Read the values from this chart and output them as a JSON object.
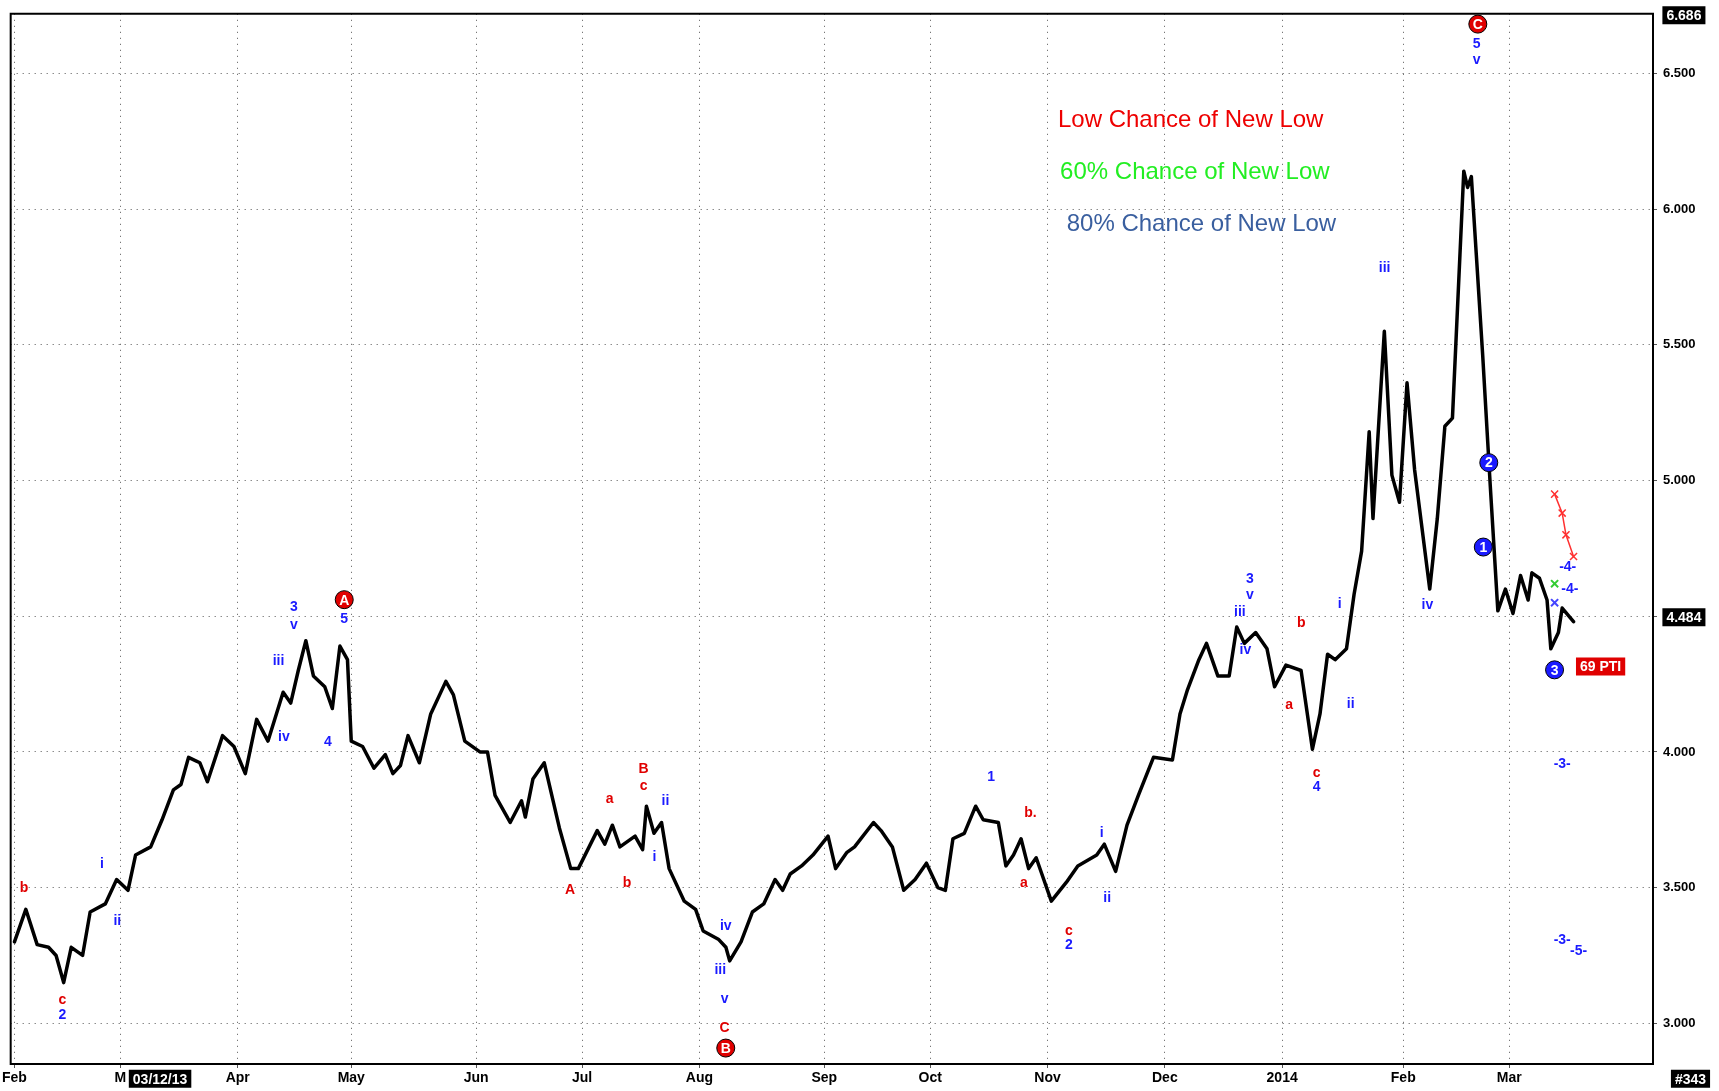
{
  "chart_data": {
    "type": "line",
    "xlim": [
      "2013-01-31",
      "2014-04-10"
    ],
    "ylim": [
      2.85,
      6.72
    ],
    "xticks": [
      {
        "value": "2013-02-01",
        "label": "Feb"
      },
      {
        "value": "2013-03-01",
        "label": "M"
      },
      {
        "value": "2013-04-01",
        "label": "Apr"
      },
      {
        "value": "2013-05-01",
        "label": "May"
      },
      {
        "value": "2013-06-03",
        "label": "Jun"
      },
      {
        "value": "2013-07-01",
        "label": "Jul"
      },
      {
        "value": "2013-08-01",
        "label": "Aug"
      },
      {
        "value": "2013-09-03",
        "label": "Sep"
      },
      {
        "value": "2013-10-01",
        "label": "Oct"
      },
      {
        "value": "2013-11-01",
        "label": "Nov"
      },
      {
        "value": "2013-12-02",
        "label": "Dec"
      },
      {
        "value": "2014-01-02",
        "label": "2014"
      },
      {
        "value": "2014-02-03",
        "label": "Feb"
      },
      {
        "value": "2014-03-03",
        "label": "Mar"
      }
    ],
    "yticks": [
      {
        "value": 3,
        "label": "3.000"
      },
      {
        "value": 3.5,
        "label": "3.500"
      },
      {
        "value": 4,
        "label": "4.000"
      },
      {
        "value": 4.5,
        "label": null
      },
      {
        "value": 5,
        "label": "5.000"
      },
      {
        "value": 5.5,
        "label": "5.500"
      },
      {
        "value": 6,
        "label": "6.000"
      },
      {
        "value": 6.5,
        "label": "6.500"
      }
    ],
    "grid": true,
    "legend": false,
    "series": [
      {
        "color": "#000000",
        "marker": "none",
        "x": [
          "2013-02-01",
          "2013-02-04",
          "2013-02-07",
          "2013-02-10",
          "2013-02-12",
          "2013-02-14",
          "2013-02-16",
          "2013-02-19",
          "2013-02-21",
          "2013-02-25",
          "2013-02-28",
          "2013-03-03",
          "2013-03-05",
          "2013-03-09",
          "2013-03-12",
          "2013-03-15",
          "2013-03-17",
          "2013-03-19",
          "2013-03-22",
          "2013-03-24",
          "2013-03-28",
          "2013-03-31",
          "2013-04-03",
          "2013-04-06",
          "2013-04-09",
          "2013-04-13",
          "2013-04-15",
          "2013-04-17",
          "2013-04-19",
          "2013-04-21",
          "2013-04-24",
          "2013-04-26",
          "2013-04-28",
          "2013-04-30",
          "2013-05-01",
          "2013-05-04",
          "2013-05-07",
          "2013-05-10",
          "2013-05-12",
          "2013-05-14",
          "2013-05-16",
          "2013-05-19",
          "2013-05-22",
          "2013-05-26",
          "2013-05-28",
          "2013-05-31",
          "2013-06-04",
          "2013-06-06",
          "2013-06-08",
          "2013-06-12",
          "2013-06-15",
          "2013-06-16",
          "2013-06-18",
          "2013-06-21",
          "2013-06-23",
          "2013-06-25",
          "2013-06-28",
          "2013-06-30",
          "2013-07-05",
          "2013-07-07",
          "2013-07-09",
          "2013-07-11",
          "2013-07-15",
          "2013-07-17",
          "2013-07-18",
          "2013-07-20",
          "2013-07-22",
          "2013-07-24",
          "2013-07-28",
          "2013-07-31",
          "2013-08-02",
          "2013-08-06",
          "2013-08-08",
          "2013-08-09",
          "2013-08-12",
          "2013-08-15",
          "2013-08-18",
          "2013-08-21",
          "2013-08-23",
          "2013-08-25",
          "2013-08-28",
          "2013-08-31",
          "2013-09-04",
          "2013-09-06",
          "2013-09-09",
          "2013-09-11",
          "2013-09-16",
          "2013-09-18",
          "2013-09-21",
          "2013-09-24",
          "2013-09-27",
          "2013-09-30",
          "2013-10-03",
          "2013-10-05",
          "2013-10-07",
          "2013-10-10",
          "2013-10-13",
          "2013-10-15",
          "2013-10-19",
          "2013-10-21",
          "2013-10-23",
          "2013-10-25",
          "2013-10-27",
          "2013-10-29",
          "2013-10-31",
          "2013-11-02",
          "2013-11-06",
          "2013-11-09",
          "2013-11-14",
          "2013-11-16",
          "2013-11-19",
          "2013-11-22",
          "2013-11-25",
          "2013-11-29",
          "2013-12-04",
          "2013-12-06",
          "2013-12-08",
          "2013-12-11",
          "2013-12-13",
          "2013-12-16",
          "2013-12-19",
          "2013-12-21",
          "2013-12-23",
          "2013-12-26",
          "2013-12-29",
          "2013-12-31",
          "2014-01-03",
          "2014-01-07",
          "2014-01-10",
          "2014-01-12",
          "2014-01-14",
          "2014-01-16",
          "2014-01-19",
          "2014-01-21",
          "2014-01-23",
          "2014-01-25",
          "2014-01-26",
          "2014-01-29",
          "2014-01-31",
          "2014-02-02",
          "2014-02-04",
          "2014-02-06",
          "2014-02-10",
          "2014-02-12",
          "2014-02-14",
          "2014-02-16",
          "2014-02-19",
          "2014-02-20",
          "2014-02-21",
          "2014-02-24",
          "2014-02-26",
          "2014-02-28",
          "2014-03-02",
          "2014-03-04",
          "2014-03-06",
          "2014-03-08",
          "2014-03-09",
          "2014-03-11",
          "2014-03-13",
          "2014-03-14",
          "2014-03-16",
          "2014-03-17",
          "2014-03-20"
        ],
        "values": [
          3.3,
          3.42,
          3.29,
          3.28,
          3.25,
          3.15,
          3.28,
          3.25,
          3.41,
          3.44,
          3.53,
          3.49,
          3.62,
          3.65,
          3.75,
          3.86,
          3.88,
          3.98,
          3.96,
          3.89,
          4.06,
          4.02,
          3.92,
          4.12,
          4.04,
          4.22,
          4.18,
          4.3,
          4.41,
          4.28,
          4.24,
          4.16,
          4.39,
          4.34,
          4.04,
          4.02,
          3.94,
          3.99,
          3.92,
          3.95,
          4.06,
          3.96,
          4.14,
          4.26,
          4.21,
          4.04,
          4.0,
          4.0,
          3.84,
          3.74,
          3.82,
          3.76,
          3.9,
          3.96,
          3.84,
          3.72,
          3.57,
          3.57,
          3.71,
          3.66,
          3.73,
          3.65,
          3.69,
          3.64,
          3.8,
          3.7,
          3.74,
          3.57,
          3.45,
          3.42,
          3.34,
          3.31,
          3.28,
          3.23,
          3.3,
          3.41,
          3.44,
          3.53,
          3.49,
          3.55,
          3.58,
          3.62,
          3.69,
          3.57,
          3.63,
          3.65,
          3.74,
          3.71,
          3.65,
          3.49,
          3.53,
          3.59,
          3.5,
          3.49,
          3.68,
          3.7,
          3.8,
          3.75,
          3.74,
          3.58,
          3.62,
          3.68,
          3.57,
          3.61,
          3.53,
          3.45,
          3.52,
          3.58,
          3.62,
          3.66,
          3.56,
          3.73,
          3.84,
          3.98,
          3.97,
          4.14,
          4.23,
          4.34,
          4.4,
          4.28,
          4.28,
          4.46,
          4.4,
          4.44,
          4.38,
          4.24,
          4.32,
          4.3,
          4.01,
          4.14,
          4.36,
          4.34,
          4.38,
          4.58,
          4.74,
          5.18,
          4.86,
          5.55,
          5.02,
          4.92,
          5.36,
          5.04,
          4.6,
          4.86,
          5.2,
          5.23,
          6.14,
          6.08,
          6.12,
          5.46,
          4.98,
          4.52,
          4.6,
          4.51,
          4.65,
          4.56,
          4.66,
          4.64,
          4.56,
          4.38,
          4.44,
          4.53,
          4.48
        ]
      },
      {
        "color": "#ff3030",
        "marker": "cross",
        "x": [
          "2014-03-15",
          "2014-03-17",
          "2014-03-18",
          "2014-03-20"
        ],
        "values": [
          4.95,
          4.88,
          4.8,
          4.72
        ]
      },
      {
        "type": "scatter",
        "color": "#33cc33",
        "marker": "cross",
        "x": [
          "2014-03-15"
        ],
        "values": [
          4.62
        ]
      },
      {
        "type": "scatter",
        "color": "#4444ff",
        "marker": "cross",
        "x": [
          "2014-03-15"
        ],
        "values": [
          4.55
        ]
      }
    ],
    "annotations": [
      "Low Chance of New Low",
      "60% Chance of New Low",
      "80% Chance of New Low",
      "6.686",
      "4.484",
      "03/12/13",
      "#343",
      "b",
      "c",
      "2",
      "i",
      "ii",
      "3",
      "v",
      "iii",
      "iv",
      "A",
      "5",
      "4",
      "A",
      "a",
      "b",
      "B",
      "c",
      "ii",
      "i",
      "iv",
      "iii",
      "v",
      "C",
      "B",
      "1",
      "b.",
      "a",
      "c",
      "2",
      "ii",
      "i",
      "3",
      "v",
      "iii",
      "iv",
      "b",
      "a",
      "c",
      "4",
      "i",
      "ii",
      "iii",
      "iv",
      "C",
      "5",
      "v",
      "2",
      "1",
      "3",
      "-4-",
      "-4-",
      "-3-",
      "-3-",
      "-5-",
      "69 PTI"
    ]
  }
}
